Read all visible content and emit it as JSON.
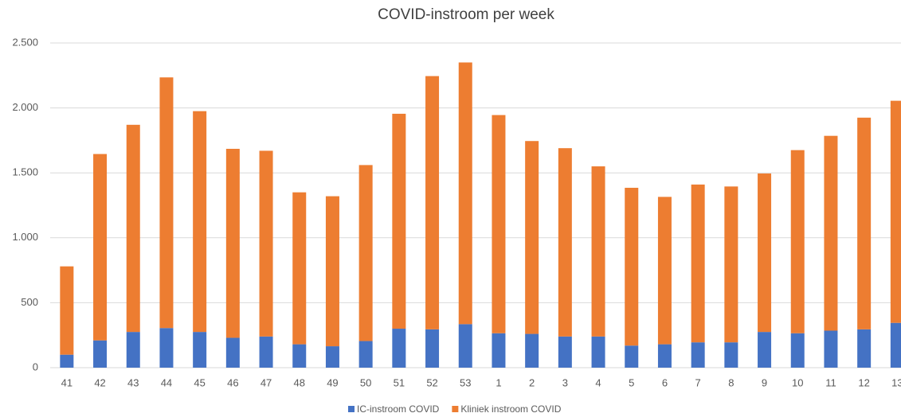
{
  "chart_data": {
    "type": "stacked_bar",
    "title": "COVID-instroom per week",
    "categories": [
      "41",
      "42",
      "43",
      "44",
      "45",
      "46",
      "47",
      "48",
      "49",
      "50",
      "51",
      "52",
      "53",
      "1",
      "2",
      "3",
      "4",
      "5",
      "6",
      "7",
      "8",
      "9",
      "10",
      "11",
      "12",
      "13"
    ],
    "series": [
      {
        "name": "IC-instroom COVID",
        "color": "#4472c4",
        "values": [
          100,
          210,
          275,
          305,
          275,
          230,
          240,
          180,
          165,
          205,
          300,
          295,
          335,
          265,
          260,
          240,
          240,
          170,
          180,
          195,
          195,
          275,
          265,
          285,
          295,
          345
        ]
      },
      {
        "name": "Kliniek instroom COVID",
        "color": "#ed7d31",
        "values": [
          680,
          1435,
          1595,
          1930,
          1700,
          1455,
          1430,
          1170,
          1155,
          1355,
          1655,
          1950,
          2015,
          1680,
          1485,
          1450,
          1310,
          1215,
          1135,
          1215,
          1200,
          1220,
          1410,
          1500,
          1630,
          1710
        ]
      }
    ],
    "ylim": [
      0,
      2500
    ],
    "yticks": [
      0,
      500,
      {
        "value": 1000,
        "label": "1.000"
      },
      {
        "value": 1500,
        "label": "1.500"
      },
      {
        "value": 2000,
        "label": "2.000"
      },
      {
        "value": 2500,
        "label": "2.500"
      }
    ],
    "grid": true,
    "legend": "bottom"
  }
}
